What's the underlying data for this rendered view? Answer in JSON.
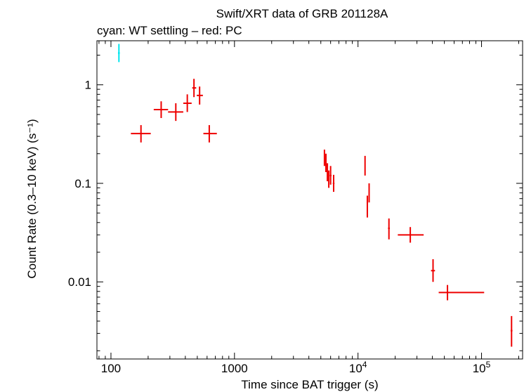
{
  "chart_data": {
    "type": "scatter",
    "title": "Swift/XRT data of GRB 201128A",
    "subtitle": "cyan: WT settling – red: PC",
    "xlabel": "Time since BAT trigger (s)",
    "ylabel": "Count Rate (0.3–10 keV) (s⁻¹)",
    "x_scale": "log",
    "y_scale": "log",
    "xlim": [
      77,
      215000
    ],
    "ylim": [
      0.00165,
      2.8
    ],
    "x_ticks": [
      {
        "value": 100,
        "label": "100"
      },
      {
        "value": 1000,
        "label": "1000"
      },
      {
        "value": 10000,
        "label": "10",
        "exp": "4"
      },
      {
        "value": 100000,
        "label": "10",
        "exp": "5"
      }
    ],
    "y_ticks": [
      {
        "value": 1,
        "label": "1"
      },
      {
        "value": 0.1,
        "label": "0.1"
      },
      {
        "value": 0.01,
        "label": "0.01"
      }
    ],
    "grid": false,
    "series": [
      {
        "color": "#00e5ee",
        "points": [
          {
            "x": 116,
            "xlo": 114,
            "xhi": 118,
            "y": 2.1,
            "ylo": 1.7,
            "yhi": 2.6
          }
        ]
      },
      {
        "color": "#ee0000",
        "points": [
          {
            "x": 175,
            "xlo": 145,
            "xhi": 210,
            "y": 0.32,
            "ylo": 0.26,
            "yhi": 0.39
          },
          {
            "x": 255,
            "xlo": 222,
            "xhi": 290,
            "y": 0.56,
            "ylo": 0.46,
            "yhi": 0.68
          },
          {
            "x": 335,
            "xlo": 290,
            "xhi": 385,
            "y": 0.53,
            "ylo": 0.43,
            "yhi": 0.65
          },
          {
            "x": 415,
            "xlo": 385,
            "xhi": 450,
            "y": 0.65,
            "ylo": 0.53,
            "yhi": 0.8
          },
          {
            "x": 470,
            "xlo": 455,
            "xhi": 490,
            "y": 0.93,
            "ylo": 0.75,
            "yhi": 1.15
          },
          {
            "x": 522,
            "xlo": 495,
            "xhi": 555,
            "y": 0.78,
            "ylo": 0.63,
            "yhi": 0.96
          },
          {
            "x": 625,
            "xlo": 560,
            "xhi": 720,
            "y": 0.32,
            "ylo": 0.26,
            "yhi": 0.39
          },
          {
            "x": 5350,
            "xlo": 5300,
            "xhi": 5400,
            "y": 0.18,
            "ylo": 0.15,
            "yhi": 0.22
          },
          {
            "x": 5500,
            "xlo": 5450,
            "xhi": 5550,
            "y": 0.16,
            "ylo": 0.13,
            "yhi": 0.2
          },
          {
            "x": 5650,
            "xlo": 5600,
            "xhi": 5700,
            "y": 0.13,
            "ylo": 0.105,
            "yhi": 0.16
          },
          {
            "x": 5800,
            "xlo": 5750,
            "xhi": 5850,
            "y": 0.11,
            "ylo": 0.09,
            "yhi": 0.135
          },
          {
            "x": 6000,
            "xlo": 5900,
            "xhi": 6100,
            "y": 0.12,
            "ylo": 0.097,
            "yhi": 0.15
          },
          {
            "x": 6350,
            "xlo": 6250,
            "xhi": 6450,
            "y": 0.1,
            "ylo": 0.082,
            "yhi": 0.122
          },
          {
            "x": 11400,
            "xlo": 11300,
            "xhi": 11500,
            "y": 0.15,
            "ylo": 0.12,
            "yhi": 0.19
          },
          {
            "x": 11900,
            "xlo": 11800,
            "xhi": 12000,
            "y": 0.06,
            "ylo": 0.045,
            "yhi": 0.075
          },
          {
            "x": 12300,
            "xlo": 12200,
            "xhi": 12400,
            "y": 0.08,
            "ylo": 0.064,
            "yhi": 0.1
          },
          {
            "x": 17800,
            "xlo": 17500,
            "xhi": 18100,
            "y": 0.035,
            "ylo": 0.027,
            "yhi": 0.044
          },
          {
            "x": 26500,
            "xlo": 21000,
            "xhi": 34000,
            "y": 0.03,
            "ylo": 0.025,
            "yhi": 0.036
          },
          {
            "x": 40500,
            "xlo": 39000,
            "xhi": 42000,
            "y": 0.013,
            "ylo": 0.01,
            "yhi": 0.017
          },
          {
            "x": 53000,
            "xlo": 45000,
            "xhi": 105000,
            "y": 0.0078,
            "ylo": 0.0065,
            "yhi": 0.0093
          },
          {
            "x": 175000,
            "xlo": 172000,
            "xhi": 178000,
            "y": 0.0032,
            "ylo": 0.0022,
            "yhi": 0.0045
          }
        ]
      }
    ]
  }
}
